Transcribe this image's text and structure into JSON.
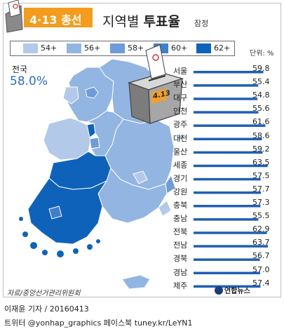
{
  "header": {
    "tag": "4·13 총선",
    "title_prefix": "지역별 ",
    "title_bold": "투표율",
    "title_sub": "잠정"
  },
  "legend": {
    "items": [
      {
        "label": "54+",
        "color": "#b3c9ea"
      },
      {
        "label": "56+",
        "color": "#93b5e2"
      },
      {
        "label": "58+",
        "color": "#6f9bd8"
      },
      {
        "label": "60+",
        "color": "#3f7fcb"
      },
      {
        "label": "62+",
        "color": "#0f62b9"
      }
    ],
    "unit": "단위: %"
  },
  "national": {
    "name": "전국",
    "value": "58.0%"
  },
  "ballot_box_label": "4.13",
  "chart_data": {
    "type": "bar",
    "title": "지역별 투표율",
    "subtitle": "잠정",
    "unit": "%",
    "xlim": [
      0,
      63.7
    ],
    "categories": [
      "서울",
      "부산",
      "대구",
      "인천",
      "광주",
      "대전",
      "울산",
      "세종",
      "경기",
      "강원",
      "충북",
      "충남",
      "전북",
      "전남",
      "경북",
      "경남",
      "제주"
    ],
    "values": [
      59.8,
      55.4,
      54.8,
      55.6,
      61.6,
      58.6,
      59.2,
      63.5,
      57.5,
      57.7,
      57.3,
      55.5,
      62.9,
      63.7,
      56.7,
      57.0,
      57.4
    ],
    "value_labels": [
      "59.8",
      "55.4",
      "54.8",
      "55.6",
      "61.6",
      "58.6",
      "59.2",
      "63.5",
      "57.5",
      "57.7",
      "57.3",
      "55.5",
      "62.9",
      "63.7",
      "56.7",
      "57.0",
      "57.4"
    ],
    "bar_color": "#1f5fb3"
  },
  "source": "자료/중앙선거관리위원회",
  "logo": "연합뉴스",
  "credits": {
    "line1": "이재윤 기자 / 20160413",
    "line2": "트위터 @yonhap_graphics  페이스북 tuney.kr/LeYN1"
  }
}
